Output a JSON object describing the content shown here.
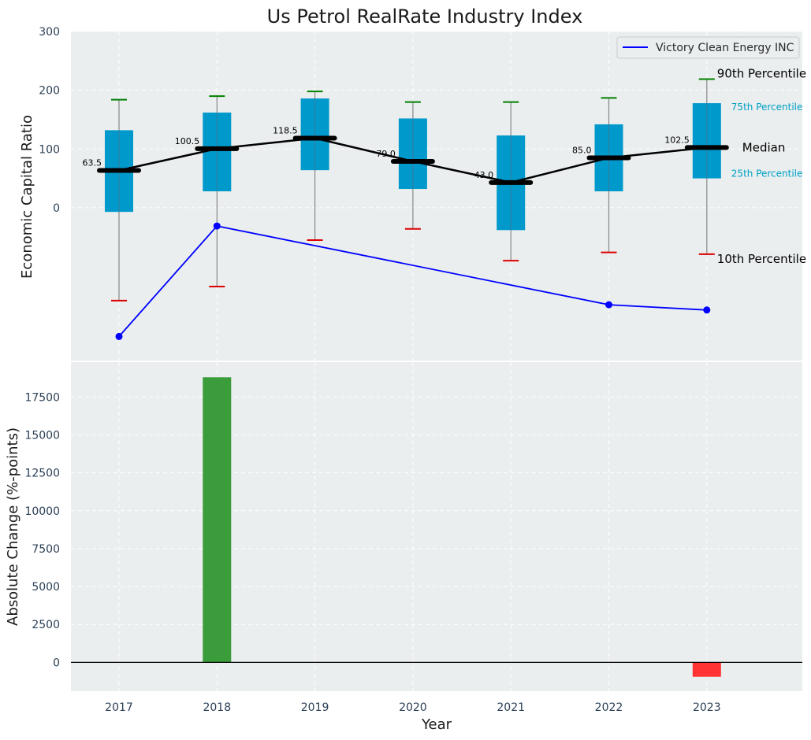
{
  "chart_data": [
    {
      "type": "box",
      "title": "Us Petrol RealRate Industry Index",
      "ylabel": "Economic Capital Ratio",
      "ylim": [
        -260,
        300
      ],
      "yticks": [
        0,
        100,
        200,
        300
      ],
      "categories": [
        "2017",
        "2018",
        "2019",
        "2020",
        "2021",
        "2022",
        "2023"
      ],
      "percentiles": {
        "p10": [
          -158,
          -134,
          -55,
          -36,
          -90,
          -76,
          -79
        ],
        "p25": [
          -7,
          28,
          64,
          32,
          -38,
          28,
          50
        ],
        "median": [
          63.5,
          100.5,
          118.5,
          79.0,
          43.0,
          85.0,
          102.5
        ],
        "p75": [
          132,
          162,
          186,
          152,
          123,
          142,
          178
        ],
        "p90": [
          184,
          190,
          198,
          180,
          180,
          187,
          219
        ]
      },
      "median_labels": [
        "63.5",
        "100.5",
        "118.5",
        "79.0",
        "43.0",
        "85.0",
        "102.5"
      ],
      "series": [
        {
          "name": "Victory Clean Energy INC",
          "color": "#0000ff",
          "x": [
            "2017",
            "2018",
            "2022",
            "2023"
          ],
          "values": [
            -219,
            -31,
            -165,
            -174
          ]
        }
      ],
      "legend": {
        "position": "top-right",
        "entries": [
          "Victory Clean Energy INC"
        ]
      },
      "annotations": {
        "p90": "90th Percentile",
        "p75": "75th Percentile",
        "median": "Median",
        "p25": "25th Percentile",
        "p10": "10th Percentile"
      },
      "colors": {
        "box": "#0099cc",
        "whisker": "#888888",
        "p90_cap": "#008000",
        "p10_cap": "#dd0000",
        "median_line": "#000000",
        "background": "#eaeeee"
      }
    },
    {
      "type": "bar",
      "ylabel": "Absolute Change (%-points)",
      "xlabel": "Year",
      "ylim": [
        -1900,
        19800
      ],
      "yticks": [
        0,
        2500,
        5000,
        7500,
        10000,
        12500,
        15000,
        17500
      ],
      "categories": [
        "2017",
        "2018",
        "2019",
        "2020",
        "2021",
        "2022",
        "2023"
      ],
      "values": [
        0,
        18800,
        0,
        0,
        0,
        0,
        -950
      ],
      "colors": {
        "positive": "#3a9c3a",
        "negative": "#ff3333",
        "zero_line": "#000000"
      }
    }
  ]
}
